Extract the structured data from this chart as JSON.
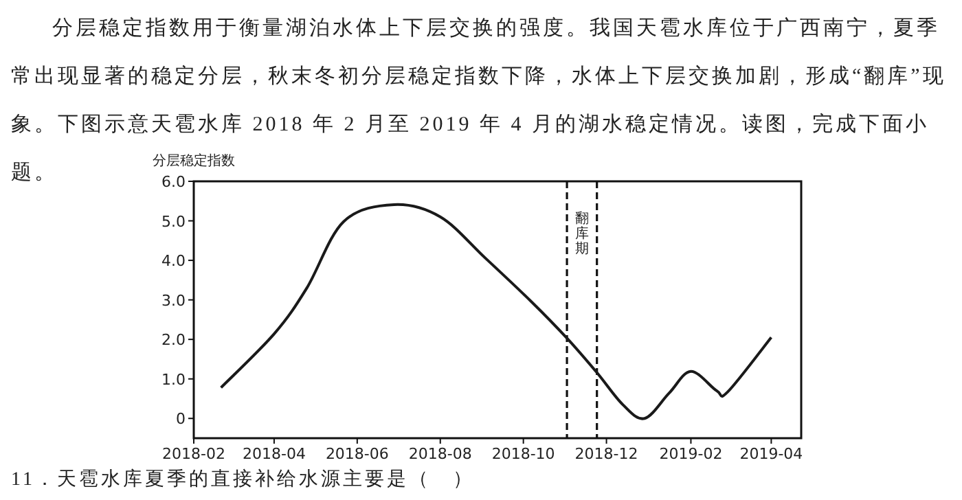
{
  "chart_data": {
    "type": "line",
    "annotations": [
      "分层稳定指数用于衡量湖泊水体上下层交换的强度。我国天雹水库位于广西南宁，夏季常出现显著的稳定分层，秋末冬初分层稳定指数下降，水体上下层交换加剧，形成“翻库”现象。下图示意天雹水库 2018 年 2 月至 2019 年 4 月的湖水稳定情况。读图，完成下面小题。",
      "11．天雹水库夏季的直接补给水源主要是（　）"
    ],
    "ylabel": "分层稳定指数",
    "x": [
      "2018-02-21",
      "2018-04-01",
      "2018-04-25",
      "2018-05-22",
      "2018-06-28",
      "2018-08-01",
      "2018-09-03",
      "2018-10-07",
      "2018-11-02",
      "2018-11-24",
      "2018-12-13",
      "2018-12-29",
      "2019-01-16",
      "2019-02-01",
      "2019-02-20",
      "2019-02-28",
      "2019-04-01"
    ],
    "series": [
      {
        "color": "#1a1a1a",
        "values": [
          0.78,
          2.14,
          3.3,
          4.98,
          5.41,
          5.1,
          4.06,
          2.95,
          2.03,
          1.16,
          0.35,
          0,
          0.64,
          1.19,
          0.7,
          0.67,
          2.05
        ]
      }
    ],
    "xlim": [
      "2018-02-01",
      "2019-04-23"
    ],
    "xticks": [
      {
        "value": "2018-02-01",
        "label": "2018-02"
      },
      {
        "value": "2018-04-01",
        "label": "2018-04"
      },
      {
        "value": "2018-06-01",
        "label": "2018-06"
      },
      {
        "value": "2018-08-01",
        "label": "2018-08"
      },
      {
        "value": "2018-10-01",
        "label": "2018-10"
      },
      {
        "value": "2018-12-01",
        "label": "2018-12"
      },
      {
        "value": "2019-02-01",
        "label": "2019-02"
      },
      {
        "value": "2019-04-01",
        "label": "2019-04"
      }
    ],
    "ylim": [
      -0.5,
      6
    ],
    "yticks": [
      {
        "value": 0,
        "label": "0"
      },
      {
        "value": 1,
        "label": "1.0"
      },
      {
        "value": 2,
        "label": "2.0"
      },
      {
        "value": 3,
        "label": "3.0"
      },
      {
        "value": 4,
        "label": "4.0"
      },
      {
        "value": 5,
        "label": "5.0"
      },
      {
        "value": 6,
        "label": "6.0"
      }
    ],
    "ref_lines": [
      {
        "axis": "x",
        "value": "2018-11-02",
        "label": "翻库期",
        "line_style": "dashed"
      },
      {
        "axis": "x",
        "value": "2018-11-24",
        "line_style": "dashed"
      }
    ],
    "grid": false,
    "marker": "none",
    "line_style": "solid"
  }
}
